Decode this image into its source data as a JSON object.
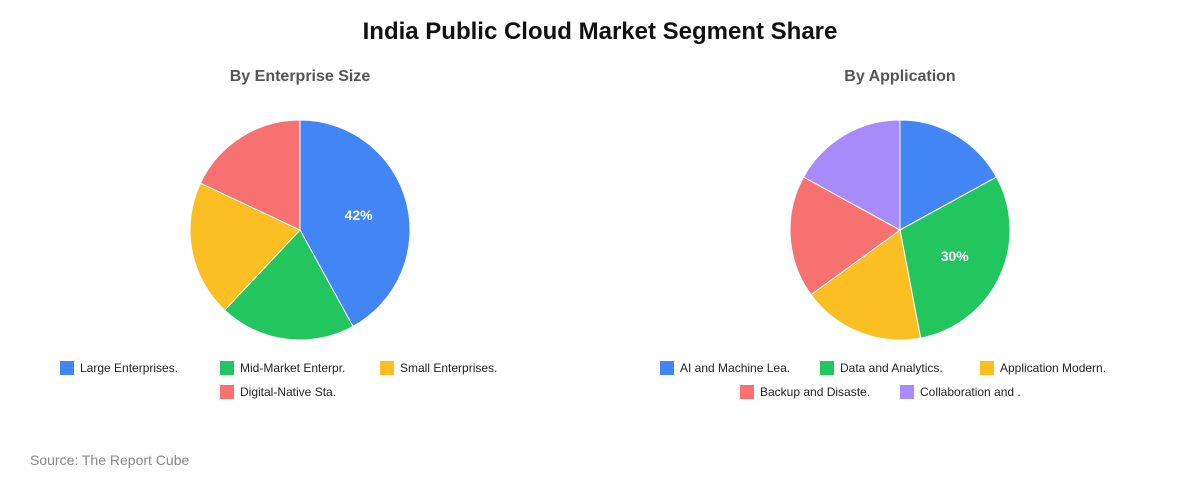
{
  "title": "India Public Cloud Market Segment Share",
  "source": "Source: The Report Cube",
  "chart_data": [
    {
      "type": "pie",
      "title": "By Enterprise Size",
      "labels": [
        "Large Enterprises.",
        "Mid-Market Enterpr.",
        "Small Enterprises.",
        "Digital-Native Sta."
      ],
      "values": [
        42,
        20,
        20,
        18
      ],
      "colors": [
        "#4285F4",
        "#22C55E",
        "#FBBF24",
        "#F87171"
      ],
      "data_labels": [
        "42%",
        "",
        "",
        ""
      ],
      "legend_rows": [
        [
          "Large Enterprises.",
          "Mid-Market Enterpr.",
          "Small Enterprises."
        ],
        [
          "Digital-Native Sta."
        ]
      ],
      "legend": "bottom"
    },
    {
      "type": "pie",
      "title": "By Application",
      "labels": [
        "AI and Machine Lea.",
        "Data and Analytics.",
        "Application Modern.",
        "Backup and Disaste.",
        "Collaboration and ."
      ],
      "values": [
        17,
        30,
        18,
        18,
        17
      ],
      "colors": [
        "#4285F4",
        "#22C55E",
        "#FBBF24",
        "#F87171",
        "#A78BFA"
      ],
      "data_labels": [
        "",
        "30%",
        "",
        "",
        ""
      ],
      "legend_rows": [
        [
          "AI and Machine Lea.",
          "Data and Analytics.",
          "Application Modern."
        ],
        [
          "Backup and Disaste.",
          "Collaboration and ."
        ]
      ],
      "legend": "bottom"
    }
  ]
}
